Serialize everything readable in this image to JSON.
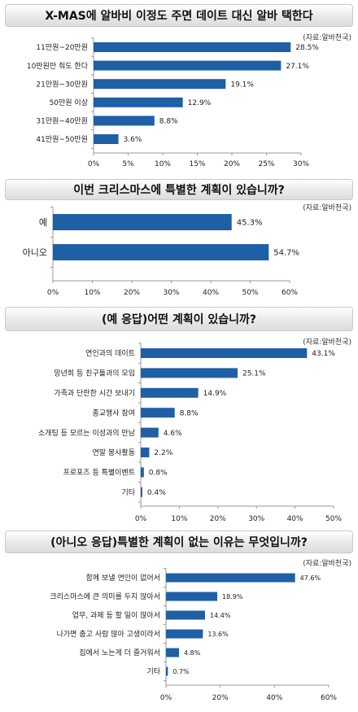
{
  "chart_data": [
    {
      "type": "bar",
      "orientation": "horizontal",
      "title": "X-MAS에 알바비 이정도 주면 데이트 대신 알바 택한다",
      "source": "(자료:알바천국)",
      "categories": [
        "11만원~20만원",
        "10만원만 줘도 한다",
        "21만원~30만원",
        "50만원 이상",
        "31만원~40만원",
        "41만원~50만원"
      ],
      "values": [
        28.5,
        27.1,
        19.1,
        12.9,
        8.8,
        3.6
      ],
      "value_labels": [
        "28.5%",
        "27.1%",
        "19.1%",
        "12.9%",
        "8.8%",
        "3.6%"
      ],
      "xlim": [
        0,
        30
      ],
      "ticks": [
        "0%",
        "5%",
        "10%",
        "15%",
        "20%",
        "25%",
        "30%"
      ],
      "color": "#1f5fa6"
    },
    {
      "type": "bar",
      "orientation": "horizontal",
      "title": "이번 크리스마스에 특별한 계획이 있습니까?",
      "source": "(자료:알바천국)",
      "categories": [
        "예",
        "아니오"
      ],
      "values": [
        45.3,
        54.7
      ],
      "value_labels": [
        "45.3%",
        "54.7%"
      ],
      "xlim": [
        0,
        60
      ],
      "ticks": [
        "0%",
        "10%",
        "20%",
        "30%",
        "40%",
        "50%",
        "60%"
      ],
      "color": "#1f5fa6"
    },
    {
      "type": "bar",
      "orientation": "horizontal",
      "title": "(예 응답)어떤 계획이 있습니까?",
      "source": "(자료:알바천국)",
      "categories": [
        "연인과의 데이트",
        "망년회 등 친구들과의 모임",
        "가족과 단란한 시간 보내기",
        "종교행사 참여",
        "소개팅 등 모르는 이성과의 만남",
        "연말 봉사활동",
        "프로포즈 등 특별이벤트",
        "기타"
      ],
      "values": [
        43.1,
        25.1,
        14.9,
        8.8,
        4.6,
        2.2,
        0.8,
        0.4
      ],
      "value_labels": [
        "43.1%",
        "25.1%",
        "14.9%",
        "8.8%",
        "4.6%",
        "2.2%",
        "0.8%",
        "0.4%"
      ],
      "xlim": [
        0,
        50
      ],
      "ticks": [
        "0%",
        "10%",
        "20%",
        "30%",
        "40%",
        "50%"
      ],
      "color": "#1f5fa6"
    },
    {
      "type": "bar",
      "orientation": "horizontal",
      "title": "(아니오 응답)특별한 계획이 없는 이유는 무엇입니까?",
      "source": "(자료:알바천국)",
      "categories": [
        "함께 보낼 연인이 없어서",
        "크리스마스에 큰 의미를 두지 않아서",
        "업무, 과제 등 할 일이 많아서",
        "나가면 춥고 사람 많아 고생이라서",
        "집에서 노는게 더 즐거워서",
        "기타"
      ],
      "values": [
        47.6,
        18.9,
        14.4,
        13.6,
        4.8,
        0.7
      ],
      "value_labels": [
        "47.6%",
        "18.9%",
        "14.4%",
        "13.6%",
        "4.8%",
        "0.7%"
      ],
      "xlim": [
        0,
        60
      ],
      "ticks": [
        "0%",
        "20%",
        "40%",
        "60%"
      ],
      "color": "#1f5fa6"
    }
  ]
}
